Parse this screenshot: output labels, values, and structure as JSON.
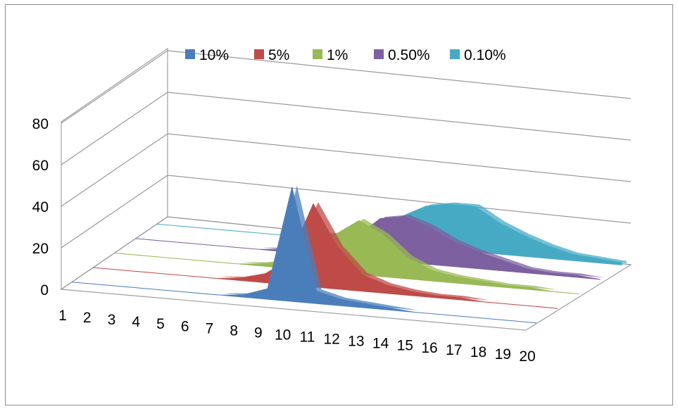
{
  "chart_data": {
    "type": "area",
    "variant": "3d-area",
    "title": "",
    "xlabel": "",
    "ylabel": "",
    "categories": [
      "1",
      "2",
      "3",
      "4",
      "5",
      "6",
      "7",
      "8",
      "9",
      "10",
      "11",
      "12",
      "13",
      "14",
      "15",
      "16",
      "17",
      "18",
      "19",
      "20"
    ],
    "ylim": [
      0,
      80
    ],
    "yticks": [
      "0",
      "20",
      "40",
      "60",
      "80"
    ],
    "grid": true,
    "legend_position": "top",
    "series": [
      {
        "name": "10%",
        "color": "#4a7ebb",
        "values": [
          0,
          0,
          0,
          0,
          0,
          0,
          0,
          1,
          5,
          55,
          6,
          3,
          2,
          1,
          0,
          0,
          0,
          0,
          0,
          0
        ]
      },
      {
        "name": "5%",
        "color": "#be4b48",
        "values": [
          0,
          0,
          0,
          0,
          0,
          0,
          1,
          4,
          12,
          40,
          20,
          8,
          4,
          2,
          1,
          1,
          0,
          0,
          0,
          0
        ]
      },
      {
        "name": "1%",
        "color": "#98b954",
        "values": [
          0,
          0,
          0,
          0,
          0,
          0,
          1,
          3,
          8,
          18,
          26,
          20,
          10,
          5,
          3,
          2,
          1,
          1,
          0,
          0
        ]
      },
      {
        "name": "0.50%",
        "color": "#7d60a0",
        "values": [
          0,
          0,
          0,
          0,
          0,
          0,
          1,
          2,
          5,
          10,
          20,
          22,
          18,
          12,
          8,
          5,
          2,
          1,
          1,
          0
        ]
      },
      {
        "name": "0.10%",
        "color": "#46aac5",
        "values": [
          0,
          0,
          0,
          0,
          0,
          0,
          1,
          2,
          4,
          8,
          14,
          20,
          22,
          22,
          15,
          10,
          6,
          3,
          2,
          1
        ]
      }
    ]
  }
}
